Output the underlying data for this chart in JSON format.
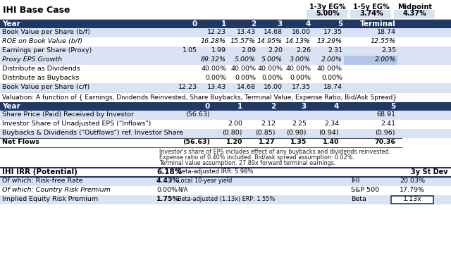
{
  "title": "IHI Base Case",
  "header_right_labels": [
    "1-3y EG%",
    "1-5y EG%",
    "Midpoint"
  ],
  "header_right_values": [
    "5.00%",
    "3.74%",
    "4.37%"
  ],
  "table1_header": [
    "Year",
    "0",
    "1",
    "2",
    "3",
    "4",
    "5",
    "Terminal"
  ],
  "table1_rows": [
    [
      "Book Value per Share (b/f)",
      "",
      "12.23",
      "13.43",
      "14.68",
      "16.00",
      "17.35",
      "18.74"
    ],
    [
      "ROE on Book Value (b/f)",
      "",
      "16.28%",
      "15.57%",
      "14.95%",
      "14.13%",
      "13.29%",
      "12.55%"
    ],
    [
      "Earnings per Share (Proxy)",
      "1.05",
      "1.99",
      "2.09",
      "2.20",
      "2.26",
      "2.31",
      "2.35"
    ],
    [
      "Proxy EPS Growth",
      "",
      "89.32%",
      "5.00%",
      "5.00%",
      "3.00%",
      "2.00%",
      "2.00%"
    ],
    [
      "Distribute as Dividends",
      "",
      "40.00%",
      "40.00%",
      "40.00%",
      "40.00%",
      "40.00%",
      ""
    ],
    [
      "Distribute as Buybacks",
      "",
      "0.00%",
      "0.00%",
      "0.00%",
      "0.00%",
      "0.00%",
      ""
    ],
    [
      "Book Value per Share (c/f)",
      "12.23",
      "13.43",
      "14.68",
      "16.00",
      "17.35",
      "18.74",
      ""
    ]
  ],
  "table1_italic_rows": [
    1,
    3
  ],
  "table1_terminal_highlight_rows": [
    3
  ],
  "valuation_text": "Valuation: A function of { Earnings, Dividends Reinvested, Share Buybacks, Terminal Value, Expense Ratio, Bid/Ask Spread}",
  "table2_header": [
    "Year",
    "0",
    "1",
    "2",
    "3",
    "4",
    "5"
  ],
  "table2_rows": [
    [
      "Share Price (Paid) Received by Investor",
      "(56.63)",
      "",
      "",
      "",
      "",
      "68.91"
    ],
    [
      "Investor Share of Unadjusted EPS (\"Inflows\")",
      "",
      "2.00",
      "2.12",
      "2.25",
      "2.34",
      "2.41"
    ],
    [
      "Buybacks & Dividends (\"Outflows\") ref. Investor Share",
      "",
      "(0.80)",
      "(0.85)",
      "(0.90)",
      "(0.94)",
      "(0.96)"
    ],
    [
      "Net Flows",
      "(56.63)",
      "1.20",
      "1.27",
      "1.35",
      "1.40",
      "70.36"
    ]
  ],
  "footnotes": [
    "Investor's share of EPS includes effect of any buybacks and dividends reinvested.",
    "Expense ratio of 0.40% included. Bid/ask spread assumption: 0.02%.",
    "Terminal value assumption: 27.89x forward terminal earnings."
  ],
  "irr_label": "IHI IRR (Potential)",
  "irr_value": "6.18%",
  "irr_note": "Beta-adjusted IRR: 5.98%",
  "irr_right_label": "3y St Dev",
  "irr_rows": [
    [
      "Of which: Risk-free Rate",
      "4.43%",
      "Local 10-year yield",
      "IHI",
      "20.03%"
    ],
    [
      "Of which: Country Risk Premium",
      "0.00%",
      "N/A",
      "S&P 500",
      "17.79%"
    ],
    [
      "Implied Equity Risk Premium",
      "1.75%",
      "Beta-adjusted (1.13x) ERP: 1.55%",
      "Beta",
      "1.13x"
    ]
  ],
  "irr_italic_rows": [
    1
  ],
  "colors": {
    "dark_blue": "#1F3864",
    "light_blue": "#DAE3F3",
    "mid_blue": "#B4C6E7",
    "white": "#FFFFFF",
    "black": "#000000",
    "gray_line": "#AAAAAA",
    "dark_gray_line": "#555555"
  }
}
